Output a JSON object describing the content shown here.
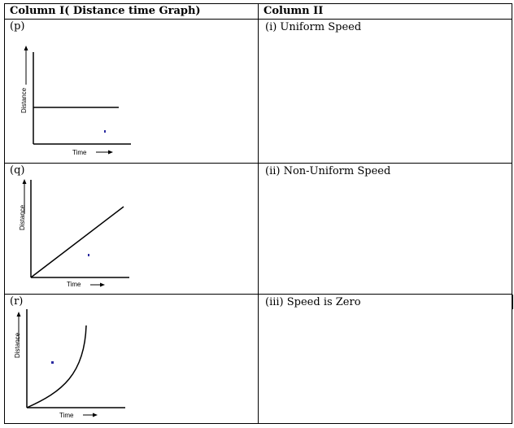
{
  "table": {
    "headers": [
      "Column I( Distance time Graph)",
      "Column II"
    ],
    "rows": [
      {
        "label": "(p)",
        "match": "(i) Uniform Speed",
        "x_label": "Time",
        "y_label": "Distance"
      },
      {
        "label": "(q)",
        "match": "(ii) Non-Uniform Speed",
        "x_label": "Time",
        "y_label": "Distance"
      },
      {
        "label": "(r)",
        "match": "(iii) Speed is Zero",
        "x_label": "Time",
        "y_label": "Distance"
      }
    ]
  }
}
